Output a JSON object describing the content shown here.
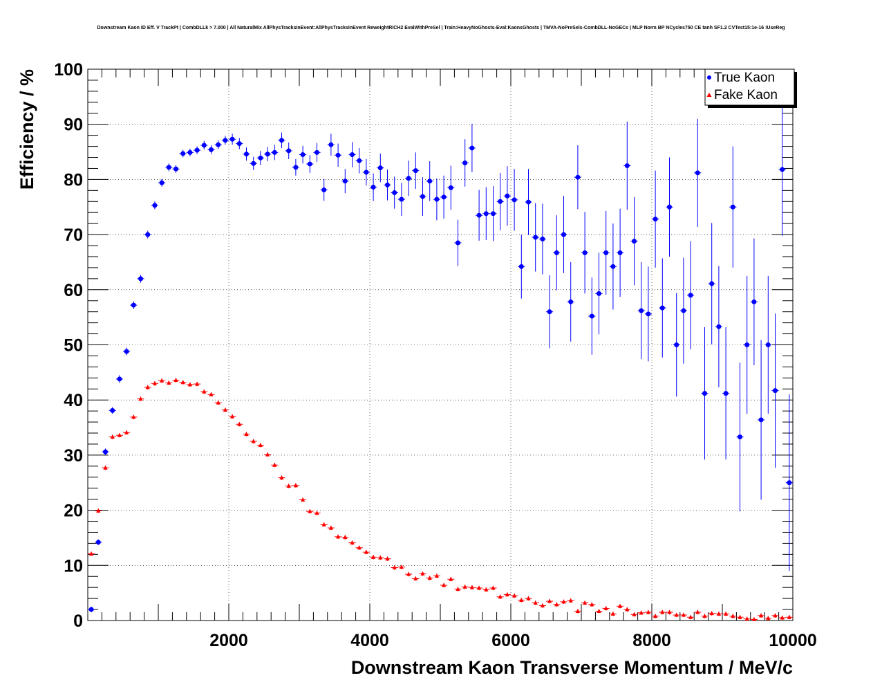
{
  "chart_data": {
    "type": "scatter",
    "title": "Downstream Kaon ID Eff. V TrackPt | CombDLLk > 7.000 | All NaturalMix AllPhysTracksInEvent:AllPhysTracksInEvent ReweightRICH2 EvalWithPreSel | Train:HeavyNoGhosts-Eval:KaonsGhosts | TMVA-NoPreSels-CombDLL-NoGECs | MLP Norm BP NCycles750 CE tanh SF1.2 CVTest15:1e-16 !UseReg",
    "xlabel": "Downstream Kaon Transverse Momentum / MeV/c",
    "ylabel": "Efficiency / %",
    "xlim": [
      0,
      10000
    ],
    "ylim": [
      0,
      100
    ],
    "x_ticks": [
      2000,
      4000,
      6000,
      8000,
      10000
    ],
    "x_tick_labels": [
      "2000",
      "4000",
      "6000",
      "8000",
      "10000"
    ],
    "y_ticks": [
      0,
      10,
      20,
      30,
      40,
      50,
      60,
      70,
      80,
      90,
      100
    ],
    "y_tick_labels": [
      "0",
      "10",
      "20",
      "30",
      "40",
      "50",
      "60",
      "70",
      "80",
      "90",
      "100"
    ],
    "grid": true,
    "legend_position": "top-right",
    "series": [
      {
        "name": "True Kaon",
        "color": "#0000ff",
        "marker": "circle",
        "x": [
          50,
          150,
          250,
          350,
          450,
          550,
          650,
          750,
          850,
          950,
          1050,
          1150,
          1250,
          1350,
          1450,
          1550,
          1650,
          1750,
          1850,
          1950,
          2050,
          2150,
          2250,
          2350,
          2450,
          2550,
          2650,
          2750,
          2850,
          2950,
          3050,
          3150,
          3250,
          3350,
          3450,
          3550,
          3650,
          3750,
          3850,
          3950,
          4050,
          4150,
          4250,
          4350,
          4450,
          4550,
          4650,
          4750,
          4850,
          4950,
          5050,
          5150,
          5250,
          5350,
          5450,
          5550,
          5650,
          5750,
          5850,
          5950,
          6050,
          6150,
          6250,
          6350,
          6450,
          6550,
          6650,
          6750,
          6850,
          6950,
          7050,
          7150,
          7250,
          7350,
          7450,
          7550,
          7650,
          7750,
          7850,
          7950,
          8050,
          8150,
          8250,
          8350,
          8450,
          8550,
          8650,
          8750,
          8850,
          8950,
          9050,
          9150,
          9250,
          9350,
          9450,
          9550,
          9650,
          9750,
          9850,
          9950
        ],
        "y": [
          2,
          14.2,
          30.6,
          38.1,
          43.8,
          48.8,
          57.2,
          62,
          70,
          75.3,
          79.4,
          82.2,
          81.9,
          84.7,
          84.9,
          85.3,
          86.2,
          85.4,
          86.3,
          87.1,
          87.3,
          86.5,
          84.6,
          82.9,
          83.9,
          84.6,
          84.9,
          87.1,
          85.2,
          82.2,
          84.5,
          82.8,
          84.9,
          78.1,
          86.3,
          84.4,
          79.7,
          84.5,
          83.4,
          81.3,
          78.6,
          82.1,
          79,
          77.6,
          76.4,
          80.2,
          81.6,
          76.9,
          79.7,
          76.4,
          76.8,
          78.5,
          68.5,
          83,
          85.7,
          73.5,
          73.8,
          73.8,
          76,
          77,
          76.3,
          64.2,
          75.9,
          69.5,
          69.2,
          56,
          66.7,
          70,
          57.8,
          80.4,
          66.7,
          55.2,
          59.3,
          66.7,
          64.2,
          66.7,
          82.5,
          68.8,
          56.2,
          55.6,
          72.8,
          56.7,
          75,
          50,
          56.2,
          59,
          81.2,
          41.2,
          61.1,
          53.3,
          41.2,
          75,
          33.3,
          50,
          57.8,
          36.4,
          50,
          41.7,
          81.8,
          25
        ],
        "err": [
          0.5,
          0.5,
          0.6,
          0.6,
          0.7,
          0.7,
          0.7,
          0.7,
          0.7,
          0.7,
          0.7,
          0.7,
          0.7,
          0.7,
          0.7,
          0.7,
          0.8,
          0.8,
          0.8,
          0.8,
          1,
          1,
          1.2,
          1.2,
          1.3,
          1.3,
          1.4,
          1.4,
          1.5,
          1.5,
          1.6,
          1.6,
          1.7,
          2,
          2,
          2.1,
          2.2,
          2.3,
          2.3,
          2.4,
          2.5,
          2.6,
          2.8,
          2.9,
          3,
          3.2,
          3.3,
          3.5,
          3.6,
          3.8,
          3.9,
          4,
          4.2,
          4.3,
          4.4,
          4.6,
          4.8,
          5,
          5.2,
          5.4,
          5.6,
          5.8,
          6,
          6.2,
          6.4,
          6.6,
          6.8,
          7,
          7.2,
          5.8,
          7.4,
          7,
          7.4,
          7.6,
          7.8,
          8,
          8,
          8,
          8.8,
          8.6,
          8.8,
          9,
          9,
          9.4,
          9.6,
          9.8,
          9.8,
          12,
          11,
          11,
          12,
          11,
          13.5,
          12.5,
          11.5,
          14.5,
          12.5,
          14,
          12,
          16
        ]
      },
      {
        "name": "Fake Kaon",
        "color": "#ff0000",
        "marker": "triangle",
        "x": [
          50,
          150,
          250,
          350,
          450,
          550,
          650,
          750,
          850,
          950,
          1050,
          1150,
          1250,
          1350,
          1450,
          1550,
          1650,
          1750,
          1850,
          1950,
          2050,
          2150,
          2250,
          2350,
          2450,
          2550,
          2650,
          2750,
          2850,
          2950,
          3050,
          3150,
          3250,
          3350,
          3450,
          3550,
          3650,
          3750,
          3850,
          3950,
          4050,
          4150,
          4250,
          4350,
          4450,
          4550,
          4650,
          4750,
          4850,
          4950,
          5050,
          5150,
          5250,
          5350,
          5450,
          5550,
          5650,
          5750,
          5850,
          5950,
          6050,
          6150,
          6250,
          6350,
          6450,
          6550,
          6650,
          6750,
          6850,
          6950,
          7050,
          7150,
          7250,
          7350,
          7450,
          7550,
          7650,
          7750,
          7850,
          7950,
          8050,
          8150,
          8250,
          8350,
          8450,
          8550,
          8650,
          8750,
          8850,
          8950,
          9050,
          9150,
          9250,
          9350,
          9450,
          9550,
          9650,
          9750,
          9850,
          9950
        ],
        "y": [
          12.1,
          19.9,
          27.7,
          33.3,
          33.6,
          34.1,
          36.9,
          40.2,
          42.3,
          43,
          43.5,
          43.1,
          43.6,
          43.2,
          42.8,
          42.9,
          41.5,
          41,
          39.5,
          38.2,
          37,
          35.6,
          33.8,
          32.5,
          31.8,
          30.1,
          28.2,
          25.9,
          24.4,
          24.5,
          21.9,
          19.8,
          19.5,
          17.4,
          16.8,
          15.2,
          15.1,
          14.1,
          13.2,
          12.4,
          11.5,
          11.4,
          11.2,
          9.6,
          9.7,
          8.4,
          7.6,
          8.5,
          7.7,
          8.1,
          6.4,
          7.5,
          5.7,
          6.1,
          6,
          5.9,
          5.6,
          5.9,
          4.3,
          4.7,
          4.5,
          3.7,
          4,
          3.2,
          2.7,
          3.5,
          2.9,
          3.4,
          3.6,
          1.7,
          3.2,
          2.9,
          1.7,
          2.2,
          1.2,
          2.6,
          2,
          1.1,
          1.4,
          1.5,
          0.8,
          1.5,
          1.5,
          1,
          1,
          0.6,
          1.5,
          0.8,
          1.3,
          1.2,
          1.2,
          0.8,
          0.6,
          0.3,
          0.2,
          0.9,
          0.4,
          0.9,
          0.5,
          0.6
        ],
        "err": [
          0.4,
          0.4,
          0.4,
          0.4,
          0.4,
          0.4,
          0.4,
          0.4,
          0.4,
          0.4,
          0.4,
          0.4,
          0.4,
          0.4,
          0.4,
          0.4,
          0.4,
          0.4,
          0.4,
          0.4,
          0.4,
          0.4,
          0.4,
          0.4,
          0.4,
          0.4,
          0.4,
          0.4,
          0.4,
          0.4,
          0.4,
          0.4,
          0.4,
          0.4,
          0.4,
          0.4,
          0.4,
          0.4,
          0.4,
          0.4,
          0.4,
          0.4,
          0.4,
          0.4,
          0.4,
          0.4,
          0.4,
          0.4,
          0.4,
          0.4,
          0.4,
          0.4,
          0.4,
          0.4,
          0.4,
          0.4,
          0.4,
          0.4,
          0.4,
          0.4,
          0.4,
          0.4,
          0.4,
          0.4,
          0.4,
          0.4,
          0.4,
          0.4,
          0.4,
          0.4,
          0.4,
          0.4,
          0.4,
          0.4,
          0.4,
          0.4,
          0.4,
          0.4,
          0.4,
          0.4,
          0.4,
          0.4,
          0.4,
          0.4,
          0.4,
          0.4,
          0.4,
          0.4,
          0.4,
          0.4,
          0.4,
          0.4,
          0.4,
          0.4,
          0.4,
          0.4,
          0.4,
          0.4,
          0.4,
          0.4
        ]
      }
    ]
  }
}
